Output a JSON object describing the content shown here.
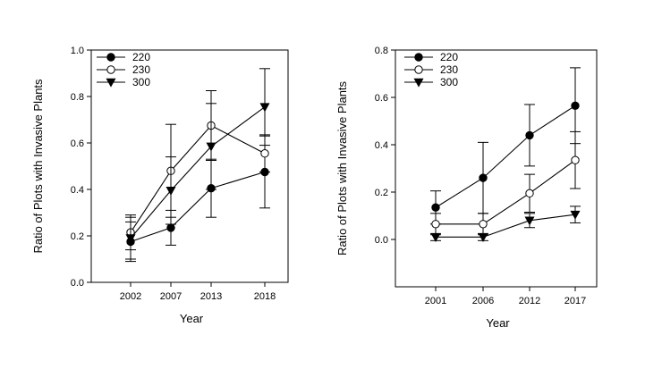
{
  "chart_data": [
    {
      "type": "line",
      "xlabel": "Year",
      "ylabel": "Ratio of Plots with Invasive Plants",
      "categories": [
        "2002",
        "2007",
        "2013",
        "2018"
      ],
      "ylim": [
        0,
        1.0
      ],
      "yticks": [
        "0.0",
        "0.2",
        "0.4",
        "0.6",
        "0.8",
        "1.0"
      ],
      "legend_position": "top-left",
      "series": [
        {
          "name": "220",
          "marker": "filled-circle",
          "values": [
            0.175,
            0.235,
            0.405,
            0.475
          ],
          "err": [
            0.085,
            0.075,
            0.125,
            0.155
          ]
        },
        {
          "name": "230",
          "marker": "open-circle",
          "values": [
            0.215,
            0.48,
            0.675,
            0.555
          ],
          "err": [
            0.075,
            0.2,
            0.15,
            0.08
          ]
        },
        {
          "name": "300",
          "marker": "filled-triangle-down",
          "values": [
            0.19,
            0.395,
            0.585,
            0.755
          ],
          "err": [
            0.09,
            0.145,
            0.185,
            0.165
          ]
        }
      ]
    },
    {
      "type": "line",
      "xlabel": "Year",
      "ylabel": "Ratio of Plots with Invasive Plants",
      "categories": [
        "2001",
        "2006",
        "2012",
        "2017"
      ],
      "ylim": [
        -0.2,
        0.8
      ],
      "yticks": [
        "0.0",
        "0.2",
        "0.4",
        "0.6",
        "0.8"
      ],
      "legend_position": "top-left",
      "series": [
        {
          "name": "220",
          "marker": "filled-circle",
          "values": [
            0.135,
            0.26,
            0.44,
            0.565
          ],
          "err": [
            0.07,
            0.15,
            0.13,
            0.16
          ]
        },
        {
          "name": "230",
          "marker": "open-circle",
          "values": [
            0.065,
            0.065,
            0.195,
            0.335
          ],
          "err": [
            0.045,
            0.045,
            0.08,
            0.12
          ]
        },
        {
          "name": "300",
          "marker": "filled-triangle-down",
          "values": [
            0.01,
            0.01,
            0.08,
            0.105
          ],
          "err": [
            0.015,
            0.015,
            0.03,
            0.035
          ]
        }
      ]
    }
  ]
}
